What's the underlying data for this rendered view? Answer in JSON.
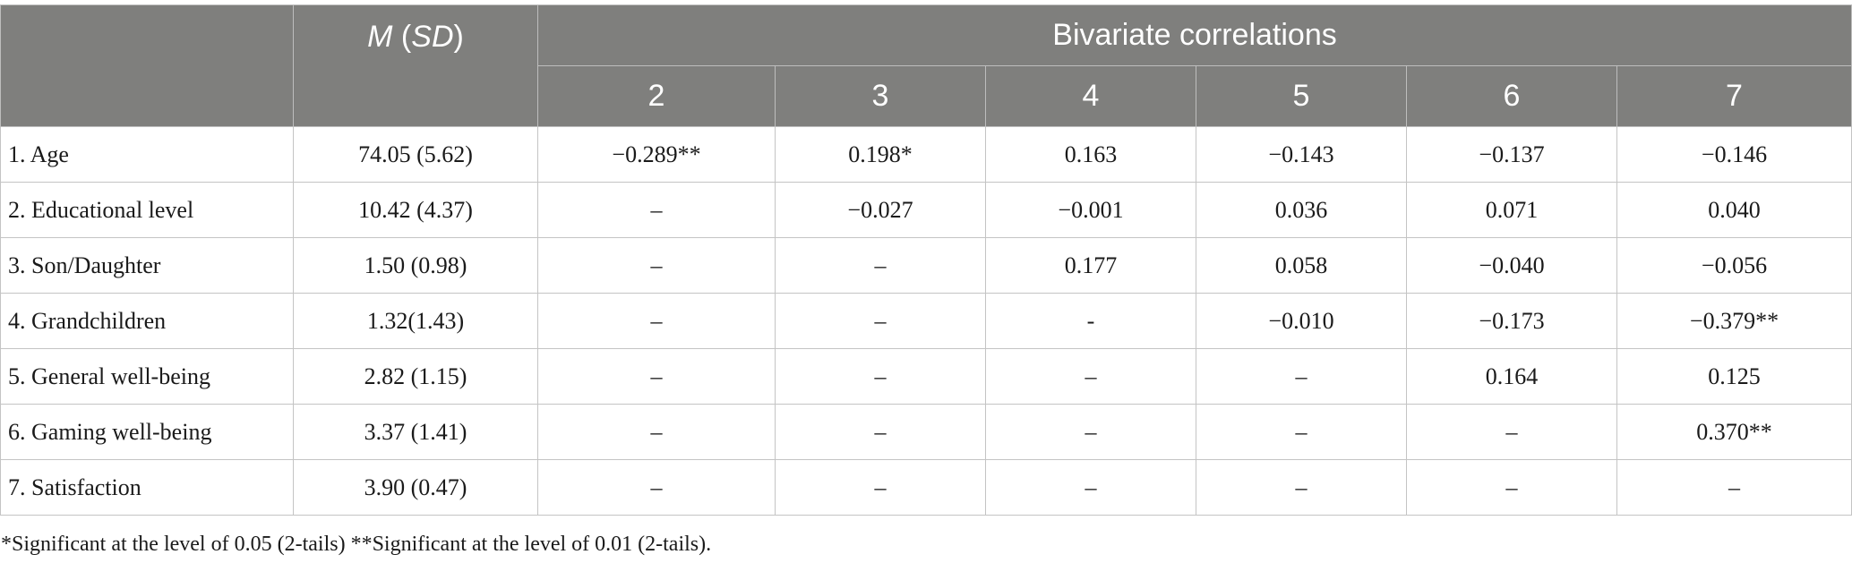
{
  "header": {
    "mean_sd_label_m": "M",
    "mean_sd_label_open": " (",
    "mean_sd_label_sd": "SD",
    "mean_sd_label_close": ")",
    "group_label": "Bivariate correlations",
    "columns": [
      "2",
      "3",
      "4",
      "5",
      "6",
      "7"
    ]
  },
  "rows": [
    {
      "variable": "1. Age",
      "mean_sd": "74.05 (5.62)",
      "values": [
        "−0.289**",
        "0.198*",
        "0.163",
        "−0.143",
        "−0.137",
        "−0.146"
      ]
    },
    {
      "variable": "2. Educational level",
      "mean_sd": "10.42 (4.37)",
      "values": [
        "–",
        "−0.027",
        "−0.001",
        "0.036",
        "0.071",
        "0.040"
      ]
    },
    {
      "variable": "3. Son/Daughter",
      "mean_sd": "1.50 (0.98)",
      "values": [
        "–",
        "–",
        "0.177",
        "0.058",
        "−0.040",
        "−0.056"
      ]
    },
    {
      "variable": "4. Grandchildren",
      "mean_sd": "1.32(1.43)",
      "values": [
        "–",
        "–",
        "-",
        "−0.010",
        "−0.173",
        "−0.379**"
      ]
    },
    {
      "variable": "5. General well-being",
      "mean_sd": "2.82 (1.15)",
      "values": [
        "–",
        "–",
        "–",
        "–",
        "0.164",
        "0.125"
      ]
    },
    {
      "variable": "6. Gaming well-being",
      "mean_sd": "3.37 (1.41)",
      "values": [
        "–",
        "–",
        "–",
        "–",
        "–",
        "0.370**"
      ]
    },
    {
      "variable": "7. Satisfaction",
      "mean_sd": "3.90 (0.47)",
      "values": [
        "–",
        "–",
        "–",
        "–",
        "–",
        "–"
      ]
    }
  ],
  "footnote": "*Significant at the level of 0.05 (2-tails) **Significant at the level of 0.01 (2-tails)."
}
